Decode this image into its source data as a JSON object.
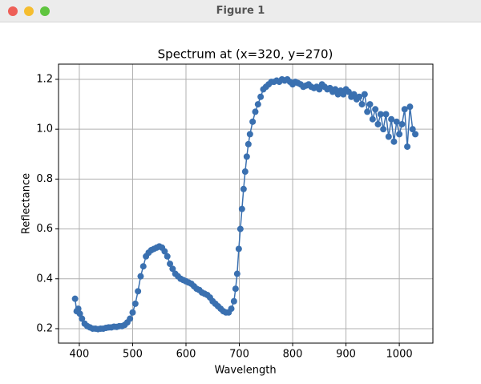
{
  "window": {
    "title": "Figure 1"
  },
  "chart_data": {
    "type": "line",
    "title": "Spectrum at (x=320, y=270)",
    "x_label": "Wavelength",
    "y_label": "Reflectance",
    "x": [
      392,
      395,
      398,
      401,
      405,
      410,
      415,
      420,
      425,
      430,
      435,
      440,
      445,
      450,
      455,
      460,
      465,
      470,
      475,
      480,
      485,
      490,
      495,
      500,
      505,
      510,
      515,
      520,
      525,
      530,
      535,
      540,
      545,
      550,
      555,
      560,
      565,
      570,
      575,
      580,
      585,
      590,
      595,
      600,
      605,
      610,
      615,
      620,
      625,
      630,
      635,
      640,
      645,
      650,
      655,
      660,
      665,
      670,
      675,
      680,
      685,
      690,
      693,
      696,
      699,
      702,
      705,
      708,
      711,
      714,
      717,
      720,
      725,
      730,
      735,
      740,
      745,
      750,
      755,
      760,
      765,
      770,
      775,
      780,
      785,
      790,
      795,
      800,
      805,
      810,
      815,
      820,
      825,
      830,
      835,
      840,
      845,
      850,
      855,
      860,
      865,
      870,
      875,
      880,
      885,
      890,
      895,
      900,
      905,
      910,
      915,
      920,
      925,
      930,
      935,
      940,
      945,
      950,
      955,
      960,
      965,
      970,
      975,
      980,
      985,
      990,
      995,
      1000,
      1005,
      1010,
      1015,
      1020,
      1025,
      1030
    ],
    "series": [
      {
        "name": "Spectrum",
        "color": "#3a70b0",
        "values": [
          0.32,
          0.27,
          0.28,
          0.26,
          0.24,
          0.22,
          0.21,
          0.205,
          0.2,
          0.2,
          0.198,
          0.2,
          0.2,
          0.203,
          0.205,
          0.205,
          0.208,
          0.207,
          0.21,
          0.21,
          0.215,
          0.225,
          0.24,
          0.265,
          0.3,
          0.35,
          0.41,
          0.45,
          0.49,
          0.505,
          0.515,
          0.52,
          0.525,
          0.53,
          0.525,
          0.51,
          0.49,
          0.46,
          0.44,
          0.42,
          0.41,
          0.4,
          0.395,
          0.39,
          0.385,
          0.38,
          0.37,
          0.36,
          0.355,
          0.345,
          0.34,
          0.335,
          0.325,
          0.31,
          0.3,
          0.29,
          0.28,
          0.27,
          0.265,
          0.265,
          0.28,
          0.31,
          0.36,
          0.42,
          0.52,
          0.6,
          0.68,
          0.76,
          0.83,
          0.89,
          0.94,
          0.98,
          1.03,
          1.07,
          1.1,
          1.13,
          1.16,
          1.17,
          1.18,
          1.19,
          1.19,
          1.195,
          1.19,
          1.2,
          1.195,
          1.2,
          1.19,
          1.18,
          1.19,
          1.185,
          1.18,
          1.17,
          1.175,
          1.18,
          1.17,
          1.165,
          1.17,
          1.16,
          1.18,
          1.17,
          1.16,
          1.165,
          1.15,
          1.16,
          1.14,
          1.155,
          1.14,
          1.16,
          1.15,
          1.13,
          1.14,
          1.12,
          1.13,
          1.1,
          1.14,
          1.07,
          1.1,
          1.04,
          1.08,
          1.02,
          1.06,
          1.0,
          1.06,
          0.97,
          1.04,
          0.95,
          1.03,
          0.98,
          1.02,
          1.08,
          0.93,
          1.09,
          1.0,
          0.98
        ]
      }
    ],
    "xlim": [
      361,
      1063
    ],
    "ylim": [
      0.142,
      1.261
    ],
    "xticks": [
      400,
      500,
      600,
      700,
      800,
      900,
      1000
    ],
    "yticks": [
      0.2,
      0.4,
      0.6,
      0.8,
      {
        "value": 1,
        "label": "1.0"
      },
      1.2
    ],
    "grid": true
  }
}
